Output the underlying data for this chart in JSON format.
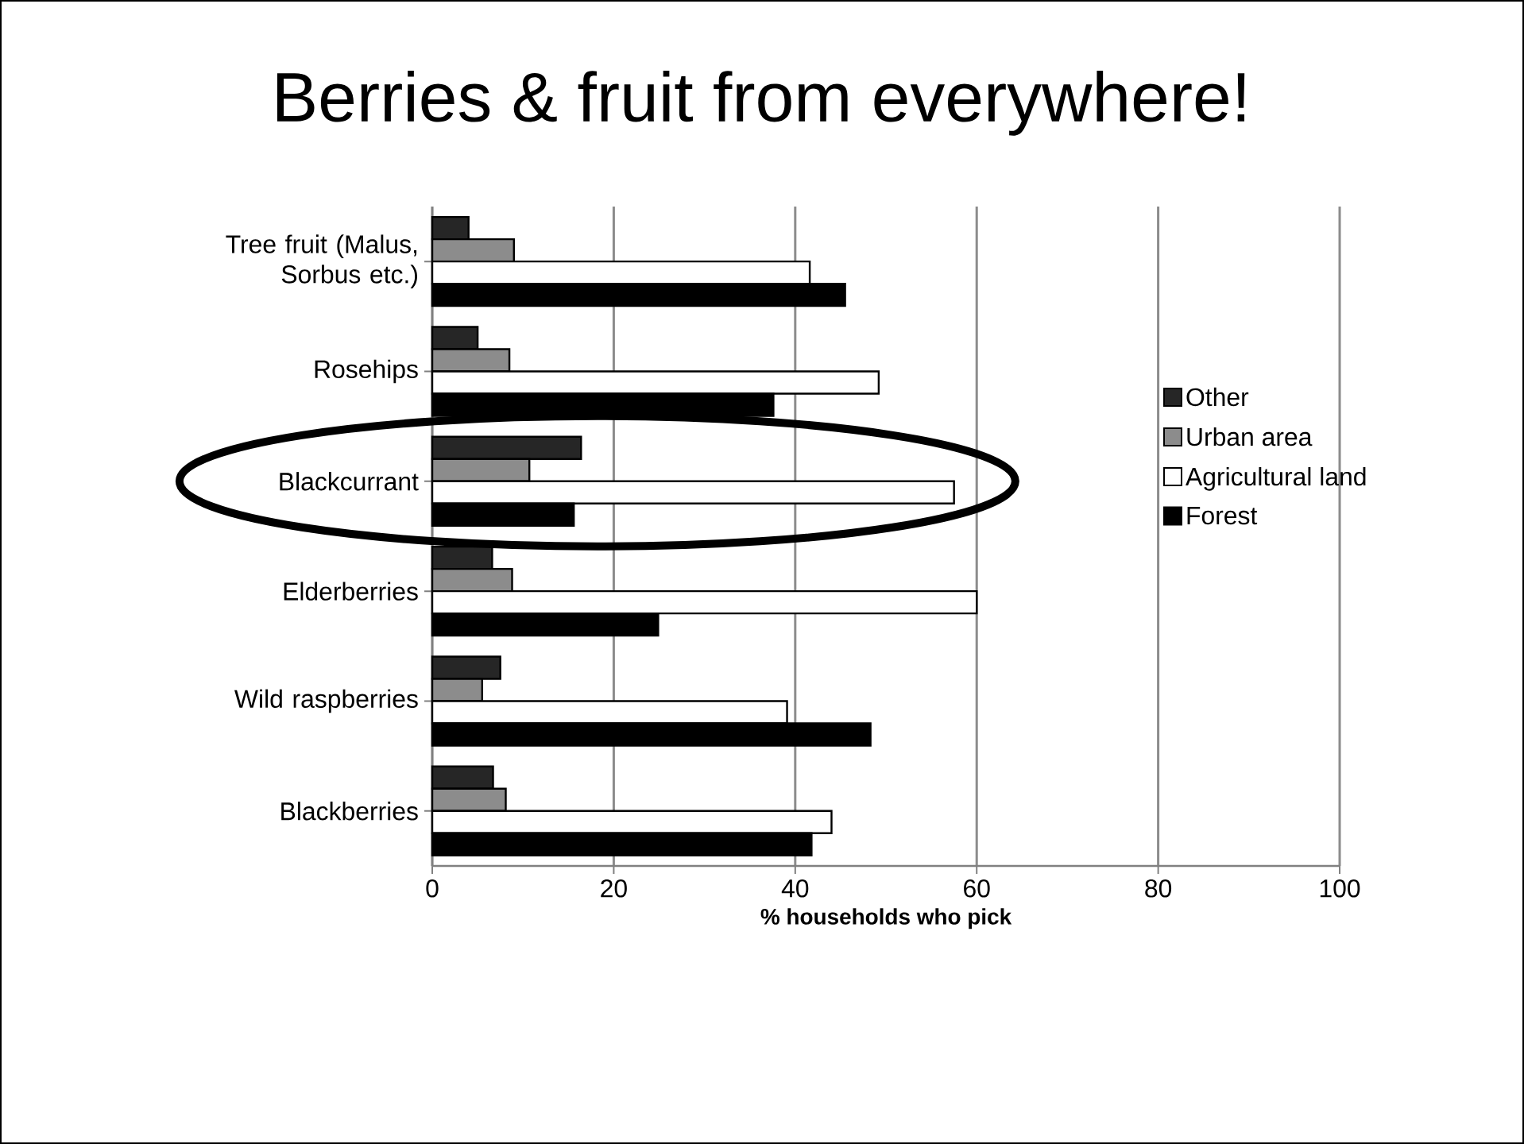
{
  "chart_data": {
    "type": "bar",
    "orientation": "horizontal",
    "title": "Berries & fruit from everywhere!",
    "categories": [
      "Tree fruit (Malus, Sorbus etc.)",
      "Rosehips",
      "Blackcurrant",
      "Elderberries",
      "Wild raspberries",
      "Blackberries"
    ],
    "series": [
      {
        "name": "Other",
        "color": "#262626",
        "values": [
          4,
          5,
          16.4,
          6.6,
          7.5,
          6.7
        ]
      },
      {
        "name": "Urban area",
        "color": "#8c8c8c",
        "values": [
          9,
          8.5,
          10.7,
          8.8,
          5.5,
          8.1
        ]
      },
      {
        "name": "Agricultural land",
        "color": "#ffffff",
        "values": [
          41.6,
          49.2,
          57.5,
          60,
          39.1,
          44
        ]
      },
      {
        "name": "Forest",
        "color": "#000000",
        "values": [
          45.5,
          37.6,
          15.6,
          24.9,
          48.3,
          41.8
        ]
      }
    ],
    "xlabel": "% households who pick",
    "xlim": [
      0,
      100
    ],
    "xticks": [
      0,
      20,
      40,
      60,
      80,
      100
    ],
    "grid": "x",
    "legend": "right"
  }
}
